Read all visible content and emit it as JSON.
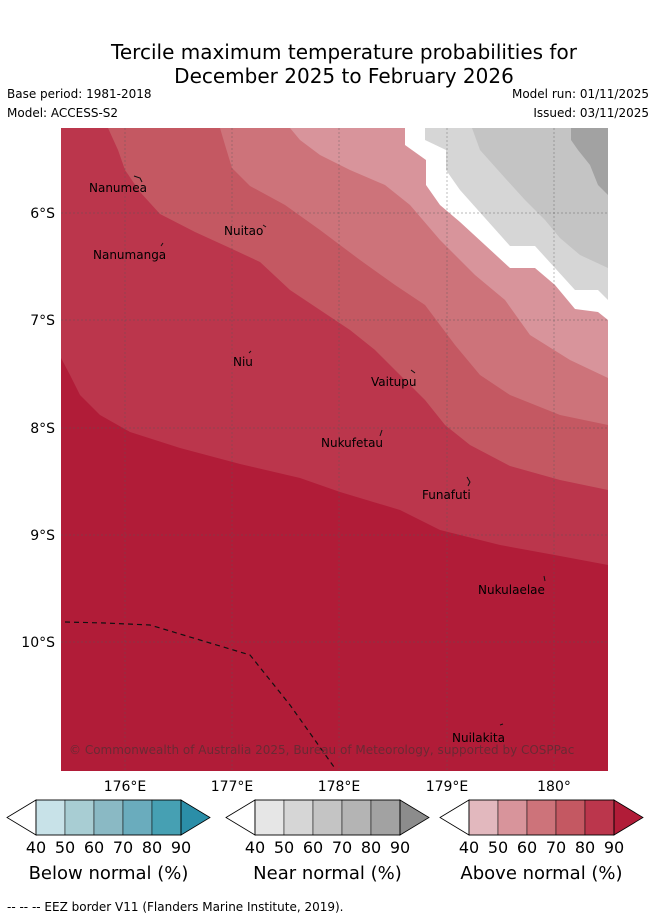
{
  "title_line1": "Tercile maximum temperature probabilities for",
  "title_line2": "December 2025 to February 2026",
  "base_period": "Base period: 1981-2018",
  "model": "Model: ACCESS-S2",
  "model_run": "Model run: 01/11/2025",
  "issued": "Issued: 03/11/2025",
  "map": {
    "lon_labels": [
      "176°E",
      "177°E",
      "178°E",
      "179°E",
      "180°"
    ],
    "lat_labels": [
      "6°S",
      "7°S",
      "8°S",
      "9°S",
      "10°S"
    ],
    "places": [
      "Nanumea",
      "Nuitao",
      "Nanumanga",
      "Niu",
      "Vaitupu",
      "Nukufetau",
      "Funafuti",
      "Nukulaelae",
      "Nuilakita"
    ],
    "copyright": "© Commonwealth of Australia 2025, Bureau of Meteorology, supported by COSPPac"
  },
  "colorbars": [
    {
      "title": "Below normal (%)",
      "ticks": [
        "40",
        "50",
        "60",
        "70",
        "80",
        "90"
      ],
      "colors": [
        "#ffffff",
        "#c8e2e8",
        "#a8cdd3",
        "#8ab9c4",
        "#6aacbd",
        "#46a0b3",
        "#2b8ea8"
      ]
    },
    {
      "title": "Near normal (%)",
      "ticks": [
        "40",
        "50",
        "60",
        "70",
        "80",
        "90"
      ],
      "colors": [
        "#ffffff",
        "#e6e6e6",
        "#d6d6d6",
        "#c4c4c4",
        "#b4b4b4",
        "#a2a2a2",
        "#8c8c8c"
      ]
    },
    {
      "title": "Above normal (%)",
      "ticks": [
        "40",
        "50",
        "60",
        "70",
        "80",
        "90"
      ],
      "colors": [
        "#ffffff",
        "#e2b8be",
        "#d8949b",
        "#cd737a",
        "#c45862",
        "#bb364c",
        "#b11c38"
      ]
    }
  ],
  "footnote": "-- -- -- EEZ border V11 (Flanders Marine Institute, 2019)."
}
